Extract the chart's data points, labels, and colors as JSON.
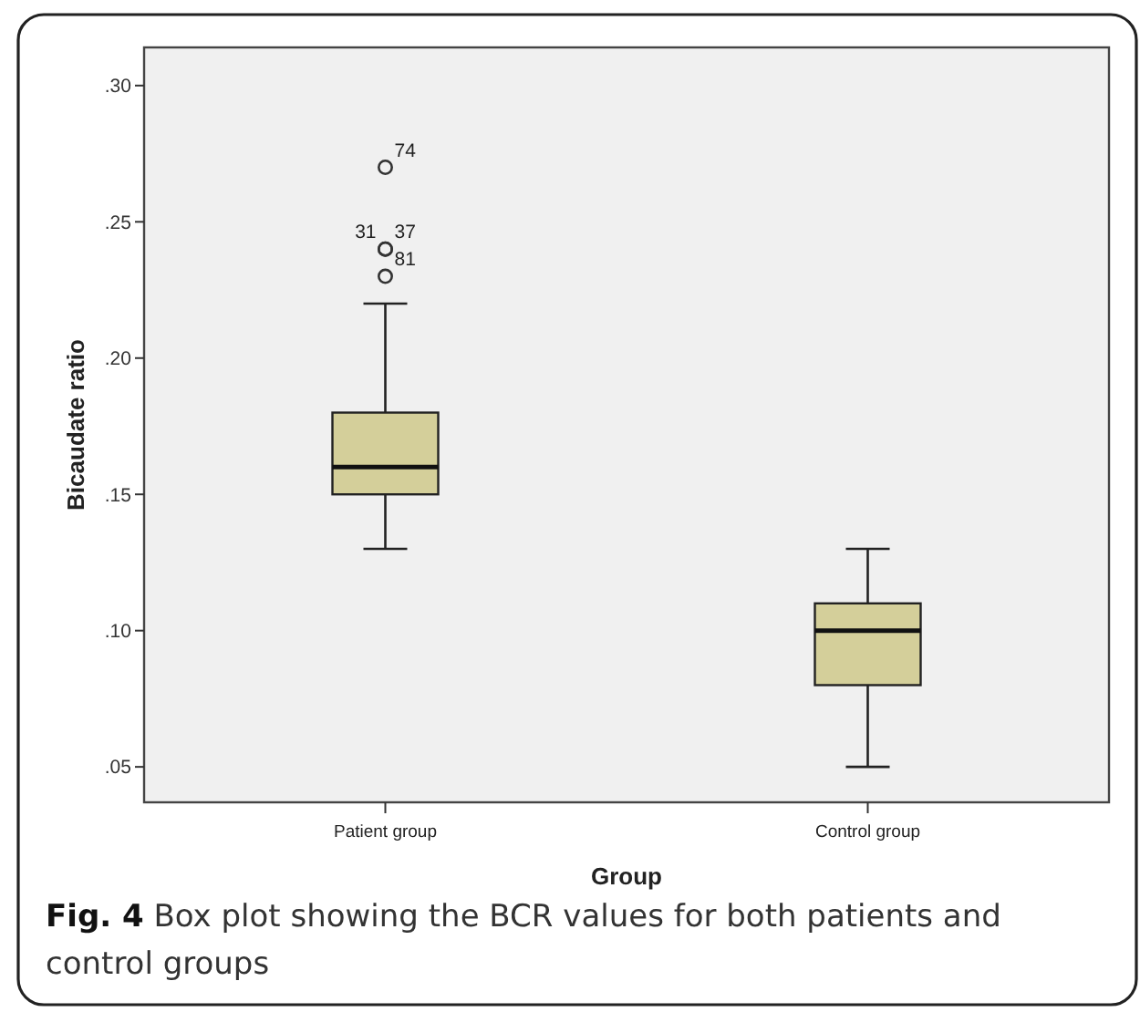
{
  "chart_data": {
    "type": "box",
    "xlabel": "Group",
    "ylabel": "Bicaudate ratio",
    "categories": [
      "Patient group",
      "Control group"
    ],
    "boxes": [
      {
        "low": 0.13,
        "q1": 0.15,
        "median": 0.16,
        "q3": 0.18,
        "high": 0.22,
        "outliers": [
          0.23,
          0.24,
          0.24,
          0.27
        ]
      },
      {
        "low": 0.05,
        "q1": 0.08,
        "median": 0.1,
        "q3": 0.11,
        "high": 0.13
      }
    ],
    "color": "#d4cf9a",
    "ylim": [
      0.037,
      0.314
    ],
    "yticks": [
      {
        "value": 0.05,
        "label": ".05"
      },
      {
        "value": 0.1,
        "label": ".10"
      },
      {
        "value": 0.15,
        "label": ".15"
      },
      {
        "value": 0.2,
        "label": ".20"
      },
      {
        "value": 0.25,
        "label": ".25"
      },
      {
        "value": 0.3,
        "label": ".30"
      }
    ],
    "grid": false,
    "annotations": [
      "74",
      "31",
      "37",
      "81",
      "Fig. 4 Box plot showing the BCR values for both patients and control groups"
    ]
  }
}
